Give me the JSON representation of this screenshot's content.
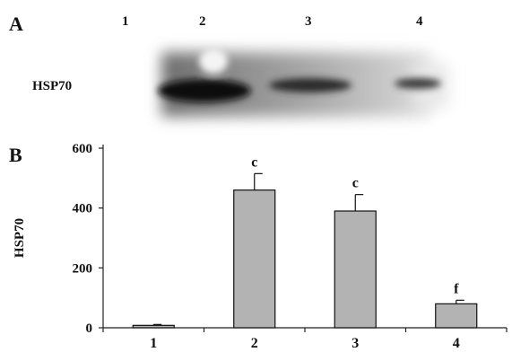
{
  "panel_a": {
    "letter": "A",
    "lanes": [
      "1",
      "2",
      "3",
      "4"
    ],
    "band_label": "HSP70"
  },
  "panel_b": {
    "letter": "B"
  },
  "chart_data": {
    "type": "bar",
    "categories": [
      "1",
      "2",
      "3",
      "4"
    ],
    "values": [
      8,
      460,
      390,
      80
    ],
    "errors": [
      3,
      55,
      55,
      12
    ],
    "significance": [
      "",
      "c",
      "c",
      "f"
    ],
    "ylabel": "HSP70",
    "xlabel": "",
    "ylim": [
      0,
      600
    ],
    "yticks": [
      0,
      200,
      400,
      600
    ],
    "bar_color": "#b3b3b3",
    "grid": false
  }
}
